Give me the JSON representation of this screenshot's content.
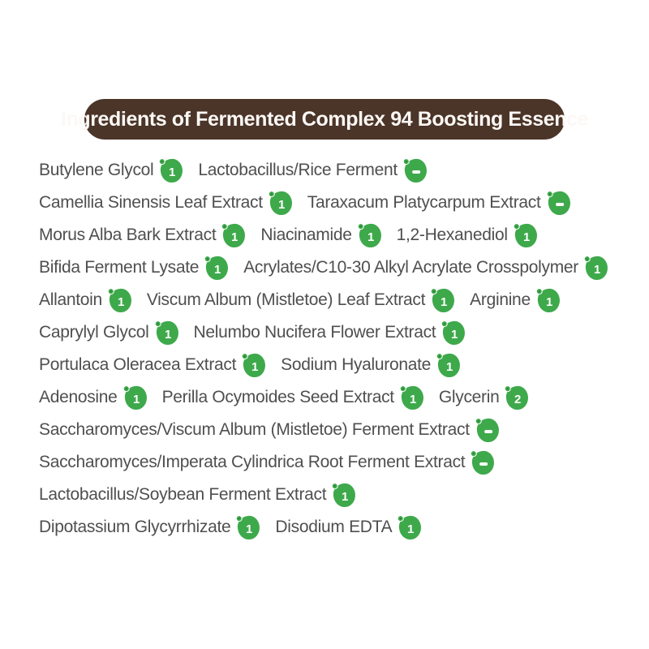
{
  "header": {
    "title": "Ingredients of Fermented Complex 94 Boosting Essence"
  },
  "colors": {
    "banner_brown": "#4B3428",
    "banner_text": "#FBF8F5",
    "badge_green": "#3EA94B",
    "badge_glyph_white": "#FFFFFF",
    "ingredient_text_gray": "#4F4F4F",
    "background": "#FFFFFF"
  },
  "badge_meaning": "ewg-grade-badge",
  "rows": [
    {
      "items": [
        {
          "name": "Butylene Glycol",
          "grade": "1"
        },
        {
          "name": "Lactobacillus/Rice Ferment",
          "grade": "-"
        }
      ]
    },
    {
      "items": [
        {
          "name": "Camellia Sinensis Leaf Extract",
          "grade": "1"
        },
        {
          "name": "Taraxacum Platycarpum Extract",
          "grade": "-"
        }
      ]
    },
    {
      "items": [
        {
          "name": "Morus Alba Bark Extract",
          "grade": "1"
        },
        {
          "name": "Niacinamide",
          "grade": "1"
        },
        {
          "name": "1,2-Hexanediol",
          "grade": "1"
        }
      ]
    },
    {
      "items": [
        {
          "name": "Bifida Ferment Lysate",
          "grade": "1"
        },
        {
          "name": "Acrylates/C10-30 Alkyl Acrylate Crosspolymer",
          "grade": "1"
        }
      ]
    },
    {
      "items": [
        {
          "name": "Allantoin",
          "grade": "1"
        },
        {
          "name": "Viscum Album (Mistletoe) Leaf Extract",
          "grade": "1"
        },
        {
          "name": "Arginine",
          "grade": "1"
        }
      ]
    },
    {
      "items": [
        {
          "name": "Caprylyl Glycol",
          "grade": "1"
        },
        {
          "name": "Nelumbo Nucifera Flower Extract",
          "grade": "1"
        }
      ]
    },
    {
      "items": [
        {
          "name": "Portulaca Oleracea Extract",
          "grade": "1"
        },
        {
          "name": "Sodium Hyaluronate",
          "grade": "1"
        }
      ]
    },
    {
      "items": [
        {
          "name": "Adenosine",
          "grade": "1"
        },
        {
          "name": "Perilla Ocymoides Seed Extract",
          "grade": "1"
        },
        {
          "name": "Glycerin",
          "grade": "2"
        }
      ]
    },
    {
      "items": [
        {
          "name": "Saccharomyces/Viscum Album (Mistletoe) Ferment Extract",
          "grade": "-"
        }
      ]
    },
    {
      "items": [
        {
          "name": "Saccharomyces/Imperata Cylindrica Root Ferment Extract",
          "grade": "-"
        }
      ]
    },
    {
      "items": [
        {
          "name": "Lactobacillus/Soybean Ferment Extract",
          "grade": "1"
        }
      ]
    },
    {
      "items": [
        {
          "name": "Dipotassium Glycyrrhizate",
          "grade": "1"
        },
        {
          "name": "Disodium EDTA",
          "grade": "1"
        }
      ]
    }
  ]
}
